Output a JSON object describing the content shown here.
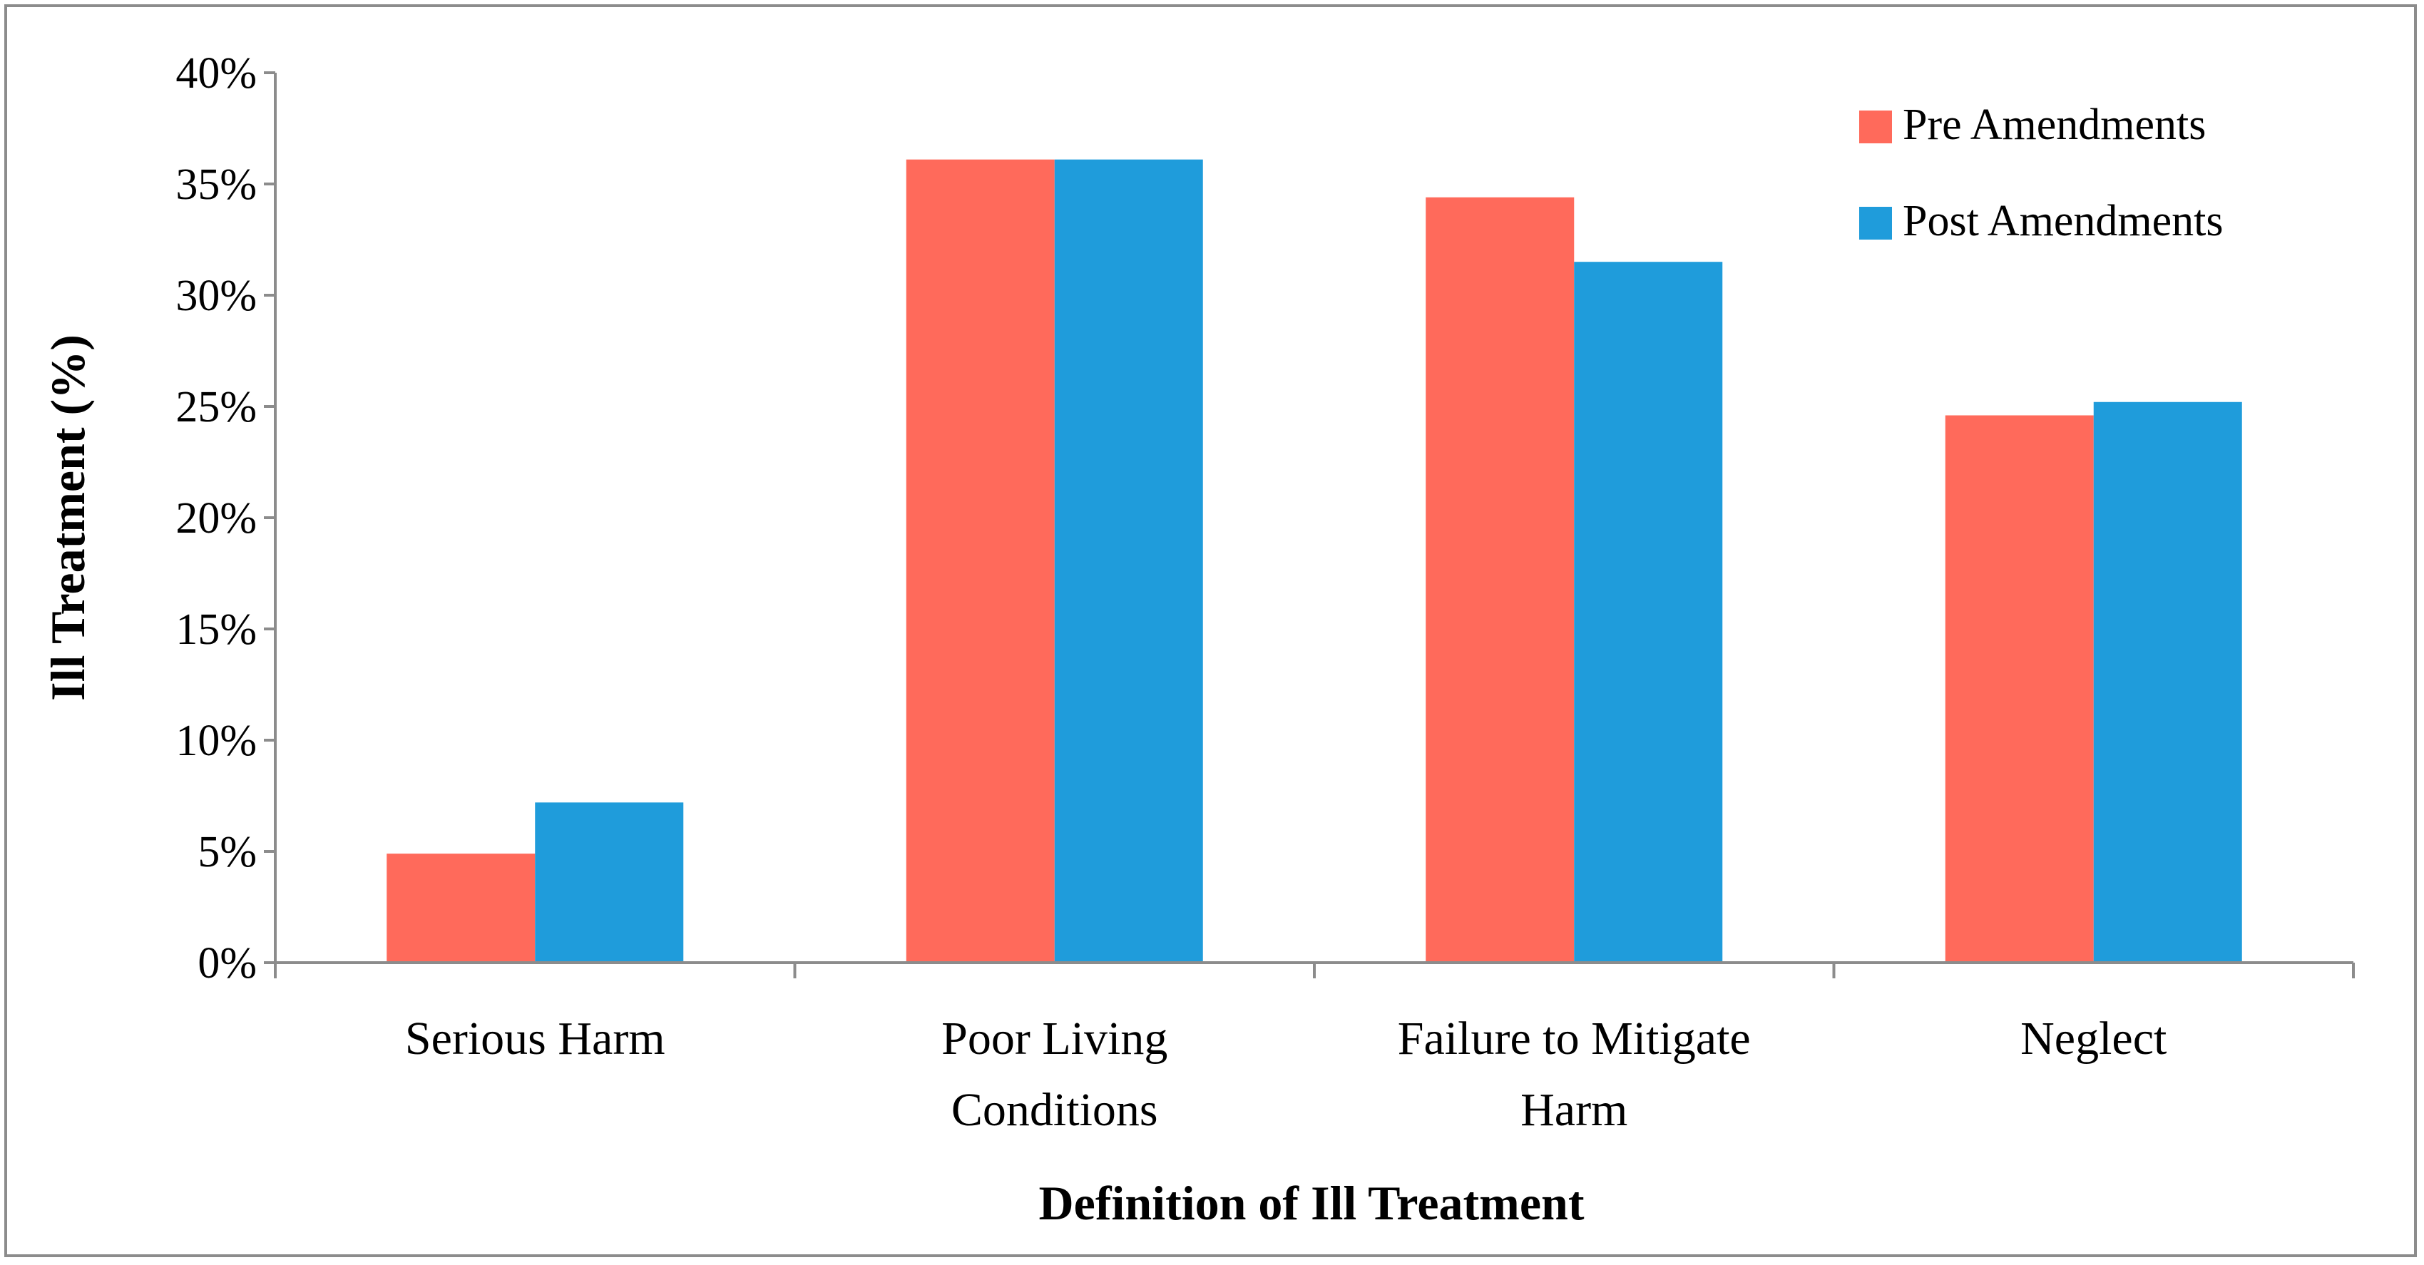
{
  "chart_data": {
    "type": "bar",
    "title": "",
    "xlabel": "Definition of Ill Treatment",
    "ylabel": "Ill Treatment (%)",
    "ylim": [
      0,
      40
    ],
    "yticks": [
      "0%",
      "5%",
      "10%",
      "15%",
      "20%",
      "25%",
      "30%",
      "35%",
      "40%"
    ],
    "ytick_values": [
      0,
      5,
      10,
      15,
      20,
      25,
      30,
      35,
      40
    ],
    "categories": [
      [
        "Serious Harm"
      ],
      [
        "Poor Living",
        "Conditions"
      ],
      [
        "Failure to Mitigate",
        "Harm"
      ],
      [
        "Neglect"
      ]
    ],
    "series": [
      {
        "name": "Pre Amendments",
        "color": "#ff6a5b",
        "values": [
          4.9,
          36.1,
          34.4,
          24.6
        ]
      },
      {
        "name": "Post Amendments",
        "color": "#1f9cdb",
        "values": [
          7.2,
          36.1,
          31.5,
          25.2
        ]
      }
    ],
    "legend_position": "top-right",
    "grid": false
  }
}
